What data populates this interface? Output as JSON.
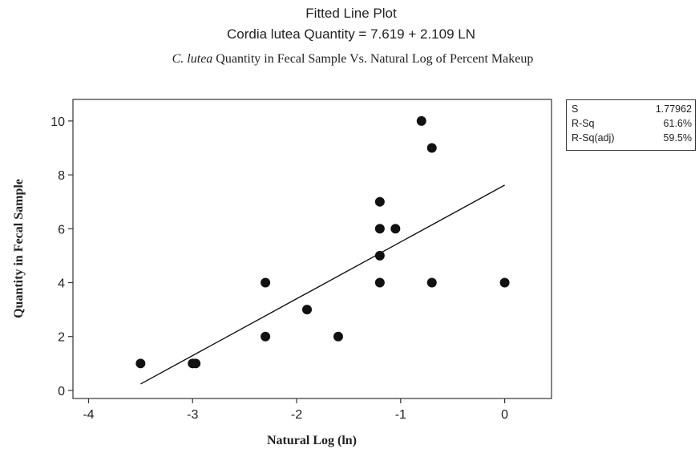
{
  "chart_data": {
    "type": "scatter",
    "title": "Fitted Line Plot",
    "subtitle": "Cordia lutea Quantity =  7.619 + 2.109 LN",
    "caption_italic": "C. lutea",
    "caption_rest": " Quantity in Fecal Sample Vs. Natural Log of Percent Makeup",
    "xlabel": "Natural Log (ln)",
    "ylabel": "Quantity in Fecal Sample",
    "xlim": [
      -4.15,
      0.45
    ],
    "ylim": [
      -0.3,
      10.8
    ],
    "xticks": [
      -4,
      -3,
      -2,
      -1,
      0
    ],
    "xtick_labels": [
      "-4",
      "-3",
      "-2",
      "-1",
      "0"
    ],
    "yticks": [
      0,
      2,
      4,
      6,
      8,
      10
    ],
    "ytick_labels": [
      "0",
      "2",
      "4",
      "6",
      "8",
      "10"
    ],
    "points": [
      {
        "x": -3.5,
        "y": 1
      },
      {
        "x": -3.0,
        "y": 1
      },
      {
        "x": -2.97,
        "y": 1
      },
      {
        "x": -2.3,
        "y": 4
      },
      {
        "x": -2.3,
        "y": 2
      },
      {
        "x": -1.9,
        "y": 3
      },
      {
        "x": -1.6,
        "y": 2
      },
      {
        "x": -1.2,
        "y": 7
      },
      {
        "x": -1.2,
        "y": 6
      },
      {
        "x": -1.2,
        "y": 5
      },
      {
        "x": -1.2,
        "y": 4
      },
      {
        "x": -1.05,
        "y": 6
      },
      {
        "x": -0.8,
        "y": 10
      },
      {
        "x": -0.7,
        "y": 9
      },
      {
        "x": -0.7,
        "y": 4
      },
      {
        "x": 0.0,
        "y": 4
      }
    ],
    "fit_line": {
      "intercept": 7.619,
      "slope": 2.109,
      "x_range": [
        -3.5,
        0.0
      ]
    },
    "grid": false
  },
  "stats": [
    {
      "label": "S",
      "value": "1.77962"
    },
    {
      "label": "R-Sq",
      "value": "61.6%"
    },
    {
      "label": "R-Sq(adj)",
      "value": "59.5%"
    }
  ],
  "colors": {
    "point": "#111111",
    "line": "#111111",
    "axis": "#333333"
  }
}
